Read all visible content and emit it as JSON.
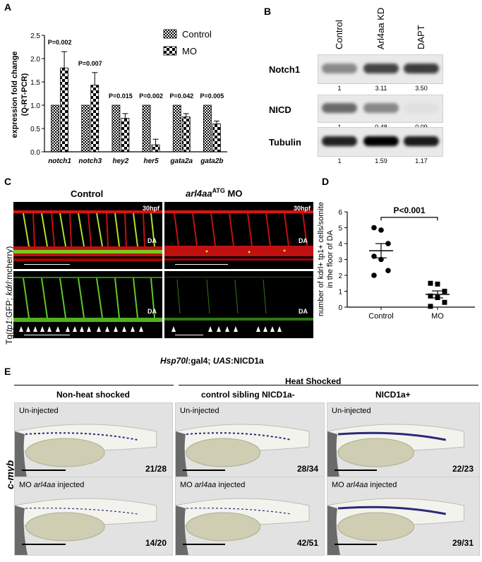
{
  "panels": {
    "a": "A",
    "b": "B",
    "c": "C",
    "d": "D",
    "e": "E"
  },
  "chart_data": [
    {
      "type": "bar",
      "ylabel": "expression fold change (Q-RT-PCR)",
      "ylabel_lines": [
        "expression fold change",
        "(Q-RT-PCR)"
      ],
      "ylim": [
        0,
        2.5
      ],
      "yticks": [
        "0.0",
        "0.5",
        "1.0",
        "1.5",
        "2.0",
        "2.5"
      ],
      "categories": [
        "notch1",
        "notch3",
        "hey2",
        "her5",
        "gata2a",
        "gata2b"
      ],
      "series": [
        {
          "name": "Control",
          "values": [
            1,
            1,
            1,
            1,
            1,
            1
          ]
        },
        {
          "name": "MO",
          "values": [
            1.8,
            1.43,
            0.72,
            0.15,
            0.75,
            0.6
          ],
          "errors": [
            0.35,
            0.27,
            0.1,
            0.12,
            0.07,
            0.06
          ]
        }
      ],
      "pvalues": [
        "P=0.002",
        "P=0.007",
        "P=0.015",
        "P=0.002",
        "P=0.042",
        "P=0.005"
      ],
      "legend_position": "top-right",
      "grid": false
    },
    {
      "type": "scatter",
      "ylabel_lines": [
        "number of kdrl+ tp1+ cells/somite",
        "in the floor of DA"
      ],
      "ylim": [
        0,
        6
      ],
      "yticks": [
        "0",
        "1",
        "2",
        "3",
        "4",
        "5",
        "6"
      ],
      "categories": [
        "Control",
        "MO"
      ],
      "points": {
        "Control": [
          5.0,
          4.85,
          4.0,
          3.2,
          3.0,
          2.3,
          2.0
        ],
        "MO": [
          1.5,
          1.45,
          1.0,
          0.7,
          0.6,
          0.3,
          0.05
        ]
      },
      "means": [
        3.55,
        0.8
      ],
      "sem": [
        0.45,
        0.22
      ],
      "annotation": "P<0.001",
      "grid": false
    }
  ],
  "blot": {
    "lanes": [
      "Control",
      "Arl4aa KD",
      "DAPT"
    ],
    "rows": [
      {
        "label": "Notch1",
        "values": [
          "1",
          "3.11",
          "3.50"
        ]
      },
      {
        "label": "NICD",
        "values": [
          "1",
          "0.48",
          "0.09"
        ]
      },
      {
        "label": "Tubulin",
        "values": [
          "1",
          "1.59",
          "1.17"
        ]
      }
    ]
  },
  "panel_c": {
    "col_control": "Control",
    "col_mo_gene": "arl4aa",
    "col_mo_sup": "ATG",
    "col_mo_suffix": " MO",
    "stage": "30hpf",
    "da": "DA",
    "row_label_prefix": "Tg(",
    "row_label_1": "tp1",
    "row_label_2": ":GFP; ",
    "row_label_3": "kdrl",
    "row_label_4": ":mcherry)"
  },
  "panel_e": {
    "genotype_1": "Hsp70l",
    "genotype_2": ":gal4; ",
    "genotype_3": "UAS",
    "genotype_4": ":NICD1a",
    "heat_shocked": "Heat Shocked",
    "col1": "Non-heat shocked",
    "col2": "control sibling NICD1a-",
    "col3": "NICD1a+",
    "row_label": "c-myb",
    "uninjected": "Un-injected",
    "mo_prefix": "MO ",
    "mo_gene": "arl4aa",
    "mo_suffix": " injected",
    "counts": [
      "21/28",
      "28/34",
      "22/23",
      "14/20",
      "42/51",
      "29/31"
    ]
  }
}
